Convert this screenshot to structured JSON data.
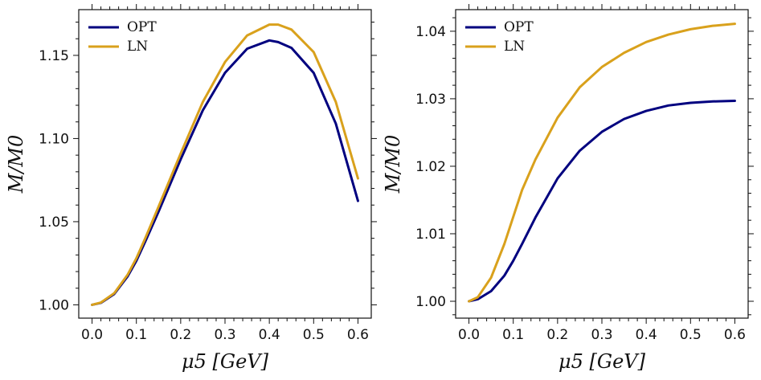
{
  "chart_data": [
    {
      "type": "line",
      "xlabel": "μ5 [GeV]",
      "ylabel": "M/M0",
      "xlim": [
        -0.03,
        0.63
      ],
      "ylim": [
        0.992,
        1.1775
      ],
      "x_ticks": [
        0.0,
        0.1,
        0.2,
        0.3,
        0.4,
        0.5,
        0.6
      ],
      "x_tick_labels": [
        "0.0",
        "0.1",
        "0.2",
        "0.3",
        "0.4",
        "0.5",
        "0.6"
      ],
      "y_ticks": [
        1.0,
        1.05,
        1.1,
        1.15
      ],
      "y_tick_labels": [
        "1.00",
        "1.05",
        "1.10",
        "1.15"
      ],
      "legend_position": "top-left",
      "grid": false,
      "series": [
        {
          "name": "OPT",
          "color": "#00007f",
          "x": [
            0.0,
            0.02,
            0.05,
            0.08,
            0.1,
            0.12,
            0.15,
            0.2,
            0.25,
            0.3,
            0.35,
            0.4,
            0.42,
            0.45,
            0.5,
            0.55,
            0.6
          ],
          "y": [
            1.0,
            1.0012,
            1.0065,
            1.017,
            1.0265,
            1.038,
            1.056,
            1.0875,
            1.117,
            1.1395,
            1.154,
            1.159,
            1.158,
            1.1545,
            1.1395,
            1.109,
            1.0625
          ]
        },
        {
          "name": "LN",
          "color": "#d9a11c",
          "x": [
            0.0,
            0.02,
            0.05,
            0.08,
            0.1,
            0.12,
            0.15,
            0.2,
            0.25,
            0.3,
            0.35,
            0.4,
            0.42,
            0.45,
            0.5,
            0.55,
            0.6
          ],
          "y": [
            1.0,
            1.0014,
            1.007,
            1.018,
            1.028,
            1.04,
            1.059,
            1.091,
            1.122,
            1.146,
            1.162,
            1.1685,
            1.1685,
            1.1655,
            1.152,
            1.122,
            1.076
          ]
        }
      ]
    },
    {
      "type": "line",
      "xlabel": "μ5 [GeV]",
      "ylabel": "M/M0",
      "xlim": [
        -0.03,
        0.63
      ],
      "ylim": [
        0.9975,
        1.0432
      ],
      "x_ticks": [
        0.0,
        0.1,
        0.2,
        0.3,
        0.4,
        0.5,
        0.6
      ],
      "x_tick_labels": [
        "0.0",
        "0.1",
        "0.2",
        "0.3",
        "0.4",
        "0.5",
        "0.6"
      ],
      "y_ticks": [
        1.0,
        1.01,
        1.02,
        1.03,
        1.04
      ],
      "y_tick_labels": [
        "1.00",
        "1.01",
        "1.02",
        "1.03",
        "1.04"
      ],
      "legend_position": "top-left",
      "grid": false,
      "series": [
        {
          "name": "OPT",
          "color": "#00007f",
          "x": [
            0.0,
            0.02,
            0.05,
            0.08,
            0.1,
            0.12,
            0.15,
            0.2,
            0.25,
            0.3,
            0.35,
            0.4,
            0.45,
            0.5,
            0.55,
            0.6
          ],
          "y": [
            1.0,
            1.0003,
            1.0015,
            1.0038,
            1.006,
            1.0085,
            1.0124,
            1.0182,
            1.0223,
            1.0251,
            1.027,
            1.0282,
            1.029,
            1.0294,
            1.0296,
            1.0297
          ]
        },
        {
          "name": "LN",
          "color": "#d9a11c",
          "x": [
            0.0,
            0.02,
            0.05,
            0.08,
            0.1,
            0.12,
            0.15,
            0.2,
            0.25,
            0.3,
            0.35,
            0.4,
            0.45,
            0.5,
            0.55,
            0.6
          ],
          "y": [
            1.0,
            1.0006,
            1.0035,
            1.0085,
            1.0125,
            1.0165,
            1.021,
            1.0272,
            1.0317,
            1.0347,
            1.0368,
            1.0384,
            1.0395,
            1.0403,
            1.0408,
            1.0411
          ]
        }
      ]
    }
  ]
}
